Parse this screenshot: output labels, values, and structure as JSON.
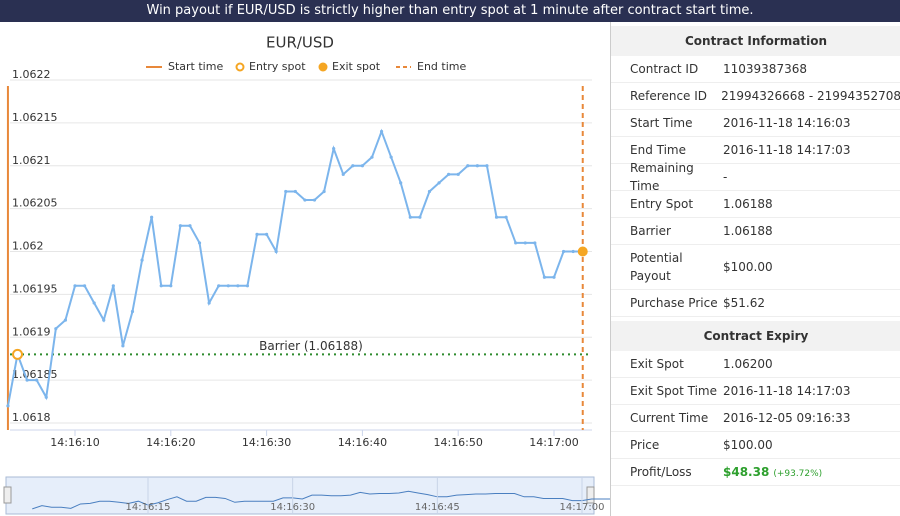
{
  "header": {
    "text": "Win payout if EUR/USD is strictly higher than entry spot at 1 minute after contract start time."
  },
  "chart_data": {
    "type": "line",
    "title": "EUR/USD",
    "legend": [
      "Start time",
      "Entry spot",
      "Exit spot",
      "End time"
    ],
    "x": [
      "14:16:03",
      "14:16:04",
      "14:16:05",
      "14:16:06",
      "14:16:07",
      "14:16:08",
      "14:16:09",
      "14:16:10",
      "14:16:11",
      "14:16:12",
      "14:16:13",
      "14:16:14",
      "14:16:15",
      "14:16:16",
      "14:16:17",
      "14:16:18",
      "14:16:19",
      "14:16:20",
      "14:16:21",
      "14:16:22",
      "14:16:23",
      "14:16:24",
      "14:16:25",
      "14:16:26",
      "14:16:27",
      "14:16:28",
      "14:16:29",
      "14:16:30",
      "14:16:31",
      "14:16:32",
      "14:16:33",
      "14:16:34",
      "14:16:35",
      "14:16:36",
      "14:16:37",
      "14:16:38",
      "14:16:39",
      "14:16:40",
      "14:16:41",
      "14:16:42",
      "14:16:43",
      "14:16:44",
      "14:16:45",
      "14:16:46",
      "14:16:47",
      "14:16:48",
      "14:16:49",
      "14:16:50",
      "14:16:51",
      "14:16:52",
      "14:16:53",
      "14:16:54",
      "14:16:55",
      "14:16:56",
      "14:16:57",
      "14:16:58",
      "14:16:59",
      "14:17:00",
      "14:17:01",
      "14:17:02",
      "14:17:03"
    ],
    "series": [
      {
        "name": "EUR/USD",
        "color": "#7cb5ec",
        "values": [
          1.06182,
          1.06188,
          1.06185,
          1.06185,
          1.06183,
          1.06191,
          1.06192,
          1.06196,
          1.06196,
          1.06194,
          1.06192,
          1.06196,
          1.06189,
          1.06193,
          1.06199,
          1.06204,
          1.06196,
          1.06196,
          1.06203,
          1.06203,
          1.06201,
          1.06194,
          1.06196,
          1.06196,
          1.06196,
          1.06196,
          1.06202,
          1.06202,
          1.062,
          1.06207,
          1.06207,
          1.06206,
          1.06206,
          1.06207,
          1.06212,
          1.06209,
          1.0621,
          1.0621,
          1.06211,
          1.06214,
          1.06211,
          1.06208,
          1.06204,
          1.06204,
          1.06207,
          1.06208,
          1.06209,
          1.06209,
          1.0621,
          1.0621,
          1.0621,
          1.06204,
          1.06204,
          1.06201,
          1.06201,
          1.06201,
          1.06197,
          1.06197,
          1.062,
          1.062,
          1.062
        ]
      }
    ],
    "ylim": [
      1.0618,
      1.0622
    ],
    "yticks": [
      1.0618,
      1.06185,
      1.0619,
      1.06195,
      1.062,
      1.06205,
      1.0621,
      1.06215,
      1.0622
    ],
    "xticks": [
      "14:16:10",
      "14:16:20",
      "14:16:30",
      "14:16:40",
      "14:16:50",
      "14:17:00"
    ],
    "navigator_xticks": [
      "14:16:15",
      "14:16:30",
      "14:16:45",
      "14:17:00"
    ],
    "barrier": {
      "value": 1.06188,
      "label": "Barrier (1.06188)"
    },
    "grid": true
  },
  "contract_information": {
    "title": "Contract Information",
    "rows": [
      [
        "Contract ID",
        "11039387368"
      ],
      [
        "Reference ID",
        "21994326668 - 21994352708"
      ],
      [
        "Start Time",
        "2016-11-18 14:16:03"
      ],
      [
        "End Time",
        "2016-11-18 14:17:03"
      ],
      [
        "Remaining Time",
        "-"
      ],
      [
        "Entry Spot",
        "1.06188"
      ],
      [
        "Barrier",
        "1.06188"
      ],
      [
        "Potential Payout",
        "$100.00"
      ],
      [
        "Purchase Price",
        "$51.62"
      ]
    ]
  },
  "contract_expiry": {
    "title": "Contract Expiry",
    "rows": [
      [
        "Exit Spot",
        "1.06200"
      ],
      [
        "Exit Spot Time",
        "2016-11-18 14:17:03"
      ],
      [
        "Current Time",
        "2016-12-05 09:16:33"
      ],
      [
        "Price",
        "$100.00"
      ],
      [
        "Profit/Loss",
        "$48.38",
        "(+93.72%)"
      ]
    ]
  }
}
